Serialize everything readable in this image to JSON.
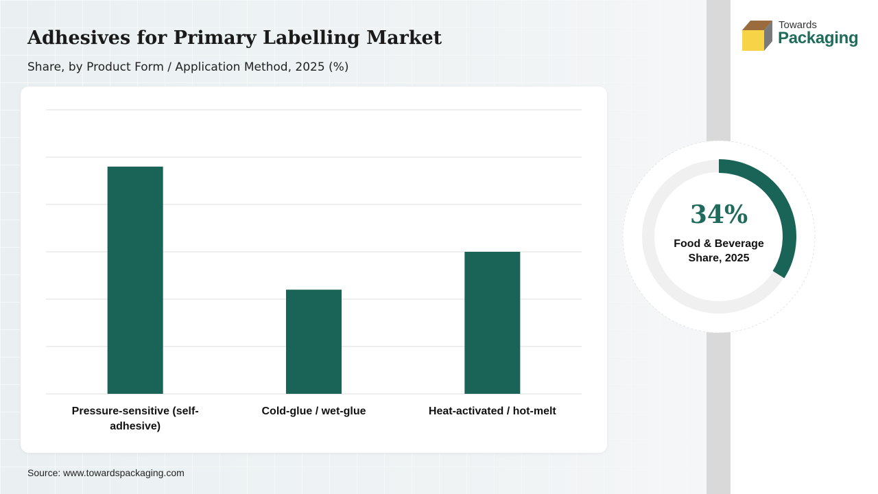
{
  "header": {
    "title": "Adhesives for Primary Labelling Market",
    "subtitle": "Share, by Product Form / Application Method, 2025 (%)"
  },
  "source": "Source: www.towardspackaging.com",
  "brand": {
    "line1": "Towards",
    "line2": "Packaging",
    "accent_color": "#1f6b5c",
    "icon": "box-logo-icon"
  },
  "chart_data": {
    "type": "bar",
    "categories": [
      [
        "Pressure-sensitive (self-",
        "adhesive)"
      ],
      [
        "Cold-glue / wet-glue"
      ],
      [
        "Heat-activated / hot-melt"
      ]
    ],
    "values": [
      48,
      22,
      30
    ],
    "ylim": [
      0,
      60
    ],
    "grid": true,
    "bar_color": "#1a6457",
    "title": "",
    "xlabel": "",
    "ylabel": ""
  },
  "highlight": {
    "value_text": "34%",
    "value": 34,
    "label_line1": "Food & Beverage",
    "label_line2": "Share, 2025",
    "fill_color": "#1a6457",
    "track_color": "#f0f0f0"
  }
}
